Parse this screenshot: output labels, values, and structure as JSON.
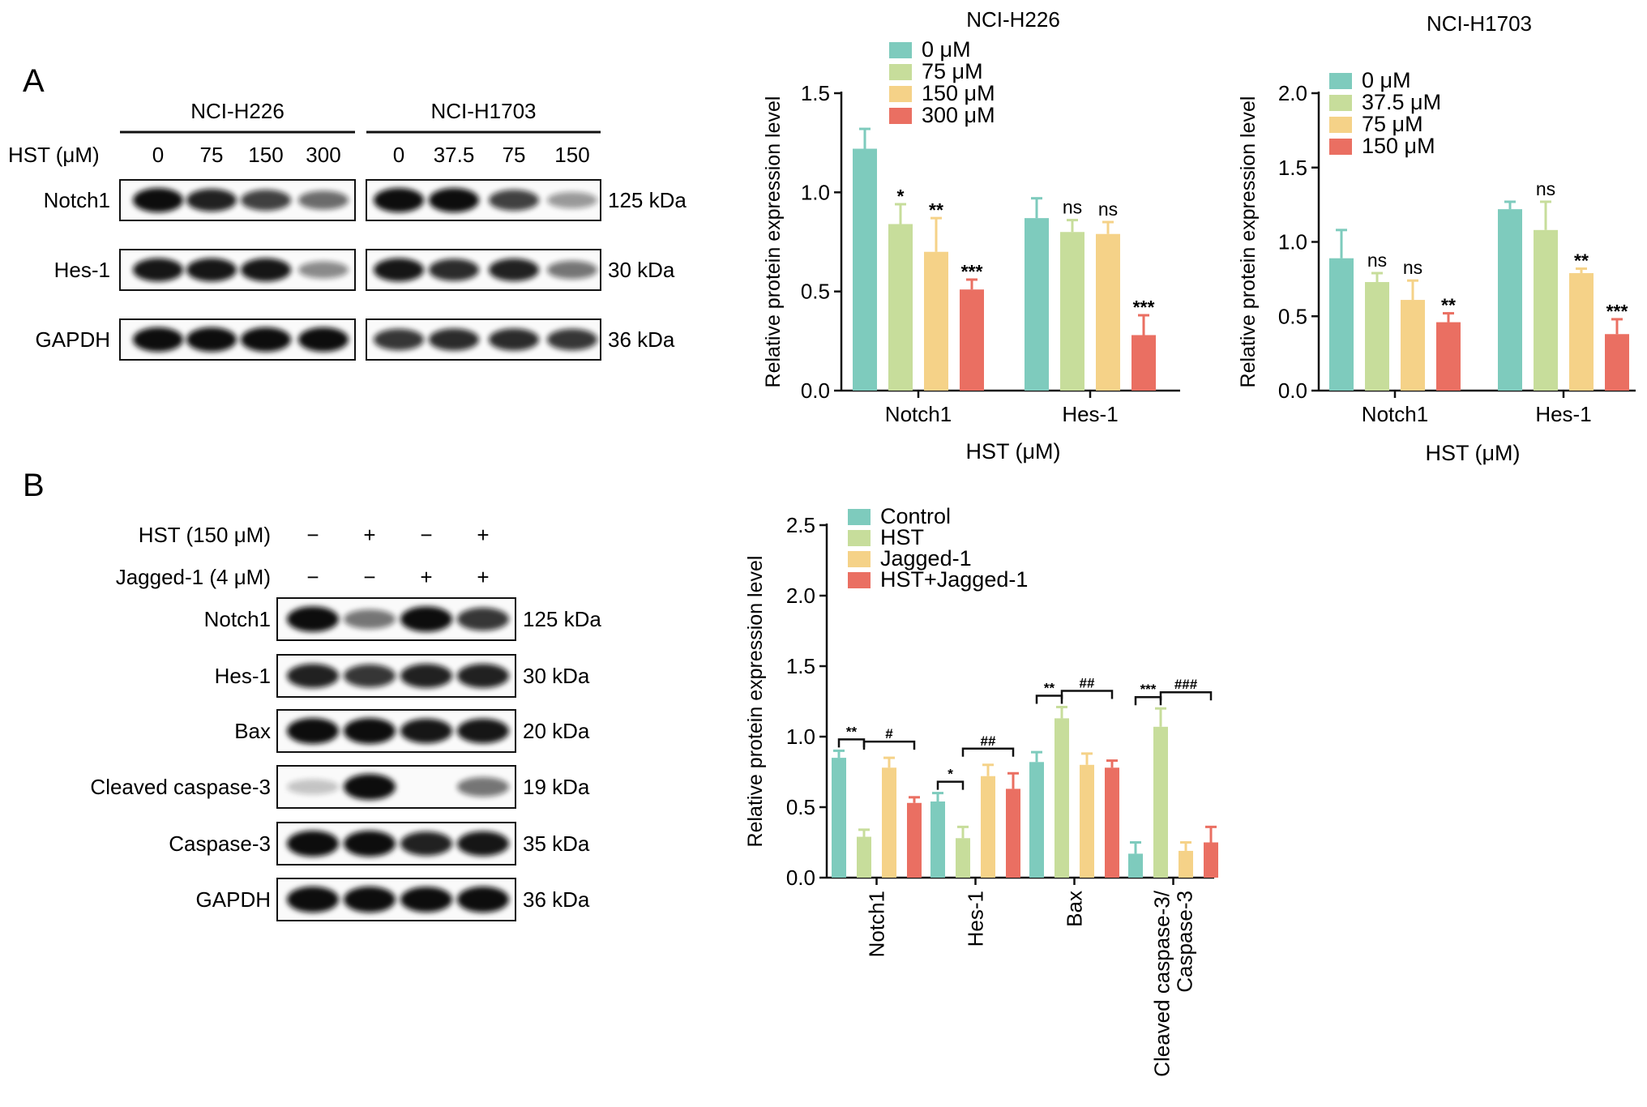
{
  "panels": {
    "a": "A",
    "b": "B"
  },
  "blot_a": {
    "treatment_label": "HST (μM)",
    "groups": [
      {
        "name": "NCI-H226",
        "lanes": [
          "0",
          "75",
          "150",
          "300"
        ]
      },
      {
        "name": "NCI-H1703",
        "lanes": [
          "0",
          "37.5",
          "75",
          "150"
        ]
      }
    ],
    "rows": [
      {
        "name": "Notch1",
        "kda": "125 kDa"
      },
      {
        "name": "Hes-1",
        "kda": "30 kDa"
      },
      {
        "name": "GAPDH",
        "kda": "36 kDa"
      }
    ],
    "intensities": [
      [
        [
          1.0,
          0.85,
          0.7,
          0.5
        ],
        [
          1.0,
          1.0,
          0.7,
          0.28
        ]
      ],
      [
        [
          0.9,
          0.9,
          0.9,
          0.35
        ],
        [
          0.9,
          0.8,
          0.85,
          0.45
        ]
      ],
      [
        [
          1.0,
          1.0,
          1.0,
          1.0
        ],
        [
          0.75,
          0.8,
          0.8,
          0.75
        ]
      ]
    ]
  },
  "blot_b": {
    "treatments": [
      {
        "label": "HST (150 μM)",
        "signs": [
          "−",
          "+",
          "−",
          "+"
        ]
      },
      {
        "label": "Jagged-1 (4 μM)",
        "signs": [
          "−",
          "−",
          "+",
          "+"
        ]
      }
    ],
    "rows": [
      {
        "name": "Notch1",
        "kda": "125 kDa"
      },
      {
        "name": "Hes-1",
        "kda": "30 kDa"
      },
      {
        "name": "Bax",
        "kda": "20 kDa"
      },
      {
        "name": "Cleaved caspase-3",
        "kda": "19 kDa"
      },
      {
        "name": "Caspase-3",
        "kda": "35 kDa"
      },
      {
        "name": "GAPDH",
        "kda": "36 kDa"
      }
    ],
    "intensities": [
      [
        0.95,
        0.45,
        0.95,
        0.75
      ],
      [
        0.85,
        0.75,
        0.85,
        0.85
      ],
      [
        1.0,
        1.0,
        0.9,
        0.9
      ],
      [
        0.08,
        1.0,
        0.0,
        0.45
      ],
      [
        1.0,
        1.0,
        0.85,
        0.9
      ],
      [
        1.0,
        1.0,
        0.95,
        1.0
      ]
    ]
  },
  "colors": {
    "teal": "#7ecbbd",
    "green": "#c7dd9b",
    "yellow": "#f5d288",
    "red": "#ea6f62"
  },
  "chart_data": [
    {
      "type": "bar",
      "title": "NCI-H226",
      "xlabel": "HST (μM)",
      "ylabel": "Relative protein expression level",
      "ylim": [
        0,
        1.5
      ],
      "yticks": [
        "0.0",
        "0.5",
        "1.0",
        "1.5"
      ],
      "categories": [
        "Notch1",
        "Hes-1"
      ],
      "legend": "top-left",
      "series": [
        {
          "name": "0 μM",
          "values": [
            1.22,
            0.87
          ],
          "errors": [
            0.1,
            0.1
          ],
          "marks": [
            "",
            ""
          ]
        },
        {
          "name": "75 μM",
          "values": [
            0.84,
            0.8
          ],
          "errors": [
            0.1,
            0.06
          ],
          "marks": [
            "*",
            "ns"
          ]
        },
        {
          "name": "150 μM",
          "values": [
            0.7,
            0.79
          ],
          "errors": [
            0.17,
            0.06
          ],
          "marks": [
            "**",
            "ns"
          ]
        },
        {
          "name": "300 μM",
          "values": [
            0.51,
            0.28
          ],
          "errors": [
            0.05,
            0.1
          ],
          "marks": [
            "***",
            "***"
          ]
        }
      ]
    },
    {
      "type": "bar",
      "title": "NCI-H1703",
      "xlabel": "HST (μM)",
      "ylabel": "Relative protein expression level",
      "ylim": [
        0,
        2.0
      ],
      "yticks": [
        "0.0",
        "0.5",
        "1.0",
        "1.5",
        "2.0"
      ],
      "categories": [
        "Notch1",
        "Hes-1"
      ],
      "legend": "top-left",
      "series": [
        {
          "name": "0 μM",
          "values": [
            0.89,
            1.22
          ],
          "errors": [
            0.19,
            0.05
          ],
          "marks": [
            "",
            ""
          ]
        },
        {
          "name": "37.5 μM",
          "values": [
            0.73,
            1.08
          ],
          "errors": [
            0.06,
            0.19
          ],
          "marks": [
            "ns",
            "ns"
          ]
        },
        {
          "name": "75 μM",
          "values": [
            0.61,
            0.79
          ],
          "errors": [
            0.13,
            0.03
          ],
          "marks": [
            "ns",
            "**"
          ]
        },
        {
          "name": "150 μM",
          "values": [
            0.46,
            0.38
          ],
          "errors": [
            0.06,
            0.1
          ],
          "marks": [
            "**",
            "***"
          ]
        }
      ]
    },
    {
      "type": "bar",
      "title": "",
      "xlabel": "",
      "ylabel": "Relative protein expression level",
      "ylim": [
        0,
        2.5
      ],
      "yticks": [
        "0.0",
        "0.5",
        "1.0",
        "1.5",
        "2.0",
        "2.5"
      ],
      "categories": [
        "Notch1",
        "Hes-1",
        "Bax",
        "Cleaved caspase-3/\nCaspase-3"
      ],
      "legend": "top-left",
      "series": [
        {
          "name": "Control",
          "values": [
            0.85,
            0.54,
            0.82,
            0.17
          ],
          "errors": [
            0.05,
            0.06,
            0.07,
            0.08
          ]
        },
        {
          "name": "HST",
          "values": [
            0.29,
            0.28,
            1.13,
            1.07
          ],
          "errors": [
            0.05,
            0.08,
            0.08,
            0.13
          ]
        },
        {
          "name": "Jagged-1",
          "values": [
            0.78,
            0.72,
            0.8,
            0.19
          ],
          "errors": [
            0.07,
            0.08,
            0.08,
            0.06
          ]
        },
        {
          "name": "HST+Jagged-1",
          "values": [
            0.53,
            0.63,
            0.78,
            0.25
          ],
          "errors": [
            0.04,
            0.11,
            0.05,
            0.11
          ]
        }
      ],
      "comparisons": [
        {
          "category": 0,
          "pair": [
            0,
            1
          ],
          "label": "**"
        },
        {
          "category": 0,
          "pair": [
            1,
            3
          ],
          "label": "#"
        },
        {
          "category": 1,
          "pair": [
            0,
            1
          ],
          "label": "*"
        },
        {
          "category": 1,
          "pair": [
            1,
            3
          ],
          "label": "##"
        },
        {
          "category": 2,
          "pair": [
            0,
            1
          ],
          "label": "**"
        },
        {
          "category": 2,
          "pair": [
            1,
            3
          ],
          "label": "##"
        },
        {
          "category": 3,
          "pair": [
            0,
            1
          ],
          "label": "***"
        },
        {
          "category": 3,
          "pair": [
            1,
            3
          ],
          "label": "###"
        }
      ]
    }
  ]
}
